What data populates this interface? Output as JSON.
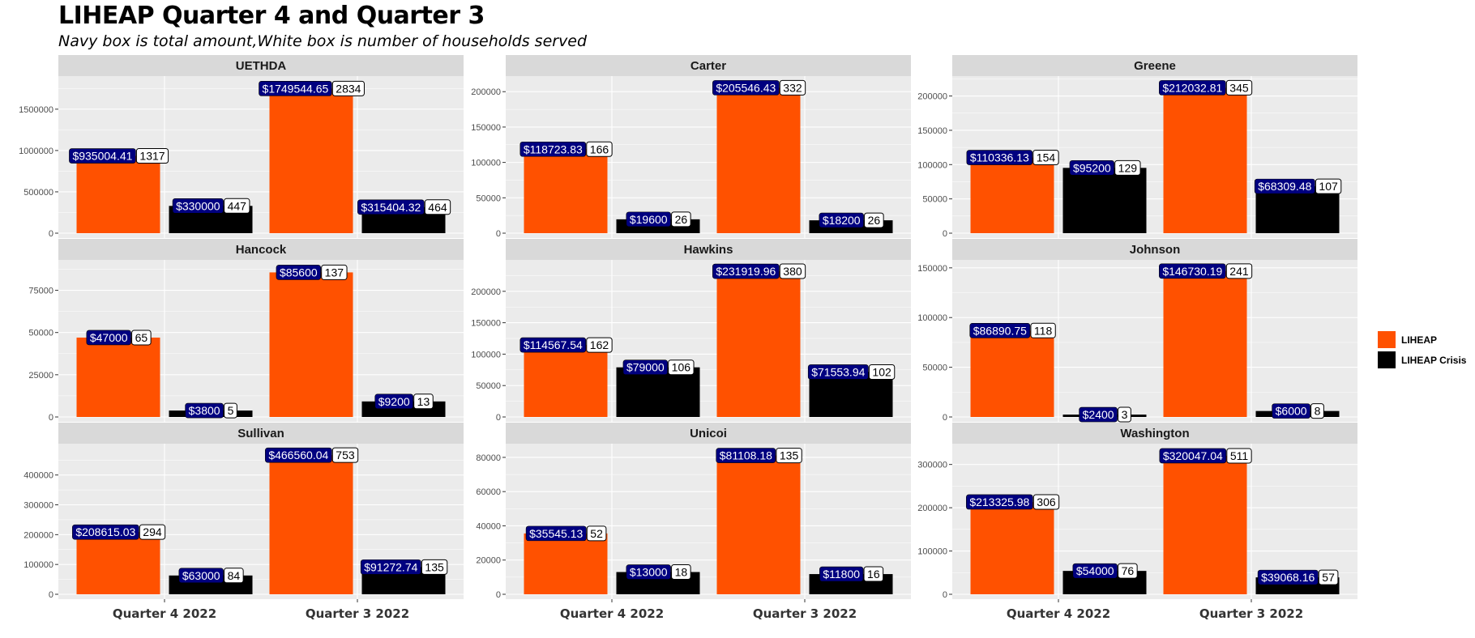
{
  "chart_data": {
    "type": "bar",
    "title": "LIHEAP Quarter 4 and Quarter 3",
    "subtitle": "Navy box is total amount,White box is number of households served",
    "categories": [
      "Quarter 4 2022",
      "Quarter 3 2022"
    ],
    "legend": {
      "placement": "right",
      "entries": [
        {
          "name": "LIHEAP",
          "color": "#FF5100"
        },
        {
          "name": "LIHEAP Crisis",
          "color": "#000000"
        }
      ]
    },
    "colors": {
      "panel_bg": "#EBEBEB",
      "strip_bg": "#D9D9D9",
      "grid": "#FFFFFF",
      "amount_box": "#000080",
      "households_box": "#FFFFFF"
    },
    "grid": true,
    "panels": [
      {
        "name": "UETHDA",
        "ylim": [
          0,
          1900000
        ],
        "ticks": [
          0,
          500000,
          1000000,
          1500000
        ],
        "tick_labels": [
          "0",
          "500000",
          "1000000",
          "1500000"
        ],
        "bars": [
          {
            "category": "Quarter 4 2022",
            "series": "LIHEAP",
            "value": 935004.41,
            "amount_label": "$935004.41",
            "households": "1317"
          },
          {
            "category": "Quarter 4 2022",
            "series": "LIHEAP Crisis",
            "value": 330000,
            "amount_label": "$330000",
            "households": "447"
          },
          {
            "category": "Quarter 3 2022",
            "series": "LIHEAP",
            "value": 1749544.65,
            "amount_label": "$1749544.65",
            "households": "2834"
          },
          {
            "category": "Quarter 3 2022",
            "series": "LIHEAP Crisis",
            "value": 315404.32,
            "amount_label": "$315404.32",
            "households": "464"
          }
        ]
      },
      {
        "name": "Carter",
        "ylim": [
          0,
          222000
        ],
        "ticks": [
          0,
          50000,
          100000,
          150000,
          200000
        ],
        "tick_labels": [
          "0",
          "50000",
          "100000",
          "150000",
          "200000"
        ],
        "bars": [
          {
            "category": "Quarter 4 2022",
            "series": "LIHEAP",
            "value": 118723.83,
            "amount_label": "$118723.83",
            "households": "166"
          },
          {
            "category": "Quarter 4 2022",
            "series": "LIHEAP Crisis",
            "value": 19600,
            "amount_label": "$19600",
            "households": "26"
          },
          {
            "category": "Quarter 3 2022",
            "series": "LIHEAP",
            "value": 205546.43,
            "amount_label": "$205546.43",
            "households": "332"
          },
          {
            "category": "Quarter 3 2022",
            "series": "LIHEAP Crisis",
            "value": 18200,
            "amount_label": "$18200",
            "households": "26"
          }
        ]
      },
      {
        "name": "Greene",
        "ylim": [
          0,
          229000
        ],
        "ticks": [
          0,
          50000,
          100000,
          150000,
          200000
        ],
        "tick_labels": [
          "0",
          "50000",
          "100000",
          "150000",
          "200000"
        ],
        "bars": [
          {
            "category": "Quarter 4 2022",
            "series": "LIHEAP",
            "value": 110336.13,
            "amount_label": "$110336.13",
            "households": "154"
          },
          {
            "category": "Quarter 4 2022",
            "series": "LIHEAP Crisis",
            "value": 95200,
            "amount_label": "$95200",
            "households": "129"
          },
          {
            "category": "Quarter 3 2022",
            "series": "LIHEAP",
            "value": 212032.81,
            "amount_label": "$212032.81",
            "households": "345"
          },
          {
            "category": "Quarter 3 2022",
            "series": "LIHEAP Crisis",
            "value": 68309.48,
            "amount_label": "$68309.48",
            "households": "107"
          }
        ]
      },
      {
        "name": "Hancock",
        "ylim": [
          0,
          93000
        ],
        "ticks": [
          0,
          25000,
          50000,
          75000
        ],
        "tick_labels": [
          "0",
          "25000",
          "50000",
          "75000"
        ],
        "bars": [
          {
            "category": "Quarter 4 2022",
            "series": "LIHEAP",
            "value": 47000,
            "amount_label": "$47000",
            "households": "65"
          },
          {
            "category": "Quarter 4 2022",
            "series": "LIHEAP Crisis",
            "value": 3800,
            "amount_label": "$3800",
            "households": "5"
          },
          {
            "category": "Quarter 3 2022",
            "series": "LIHEAP",
            "value": 85600,
            "amount_label": "$85600",
            "households": "137"
          },
          {
            "category": "Quarter 3 2022",
            "series": "LIHEAP Crisis",
            "value": 9200,
            "amount_label": "$9200",
            "households": "13"
          }
        ]
      },
      {
        "name": "Hawkins",
        "ylim": [
          0,
          250000
        ],
        "ticks": [
          0,
          50000,
          100000,
          150000,
          200000
        ],
        "tick_labels": [
          "0",
          "50000",
          "100000",
          "150000",
          "200000"
        ],
        "bars": [
          {
            "category": "Quarter 4 2022",
            "series": "LIHEAP",
            "value": 114567.54,
            "amount_label": "$114567.54",
            "households": "162"
          },
          {
            "category": "Quarter 4 2022",
            "series": "LIHEAP Crisis",
            "value": 79000,
            "amount_label": "$79000",
            "households": "106"
          },
          {
            "category": "Quarter 3 2022",
            "series": "LIHEAP",
            "value": 231919.96,
            "amount_label": "$231919.96",
            "households": "380"
          },
          {
            "category": "Quarter 3 2022",
            "series": "LIHEAP Crisis",
            "value": 71553.94,
            "amount_label": "$71553.94",
            "households": "102"
          }
        ]
      },
      {
        "name": "Johnson",
        "ylim": [
          0,
          158000
        ],
        "ticks": [
          0,
          50000,
          100000,
          150000
        ],
        "tick_labels": [
          "0",
          "50000",
          "100000",
          "150000"
        ],
        "bars": [
          {
            "category": "Quarter 4 2022",
            "series": "LIHEAP",
            "value": 86890.75,
            "amount_label": "$86890.75",
            "households": "118"
          },
          {
            "category": "Quarter 4 2022",
            "series": "LIHEAP Crisis",
            "value": 2400,
            "amount_label": "$2400",
            "households": "3"
          },
          {
            "category": "Quarter 3 2022",
            "series": "LIHEAP",
            "value": 146730.19,
            "amount_label": "$146730.19",
            "households": "241"
          },
          {
            "category": "Quarter 3 2022",
            "series": "LIHEAP Crisis",
            "value": 6000,
            "amount_label": "$6000",
            "households": "8"
          }
        ]
      },
      {
        "name": "Sullivan",
        "ylim": [
          0,
          505000
        ],
        "ticks": [
          0,
          100000,
          200000,
          300000,
          400000
        ],
        "tick_labels": [
          "0",
          "100000",
          "200000",
          "300000",
          "400000"
        ],
        "bars": [
          {
            "category": "Quarter 4 2022",
            "series": "LIHEAP",
            "value": 208615.03,
            "amount_label": "$208615.03",
            "households": "294"
          },
          {
            "category": "Quarter 4 2022",
            "series": "LIHEAP Crisis",
            "value": 63000,
            "amount_label": "$63000",
            "households": "84"
          },
          {
            "category": "Quarter 3 2022",
            "series": "LIHEAP",
            "value": 466560.04,
            "amount_label": "$466560.04",
            "households": "753"
          },
          {
            "category": "Quarter 3 2022",
            "series": "LIHEAP Crisis",
            "value": 91272.74,
            "amount_label": "$91272.74",
            "households": "135"
          }
        ]
      },
      {
        "name": "Unicoi",
        "ylim": [
          0,
          88000
        ],
        "ticks": [
          0,
          20000,
          40000,
          60000,
          80000
        ],
        "tick_labels": [
          "0",
          "20000",
          "40000",
          "60000",
          "80000"
        ],
        "bars": [
          {
            "category": "Quarter 4 2022",
            "series": "LIHEAP",
            "value": 35545.13,
            "amount_label": "$35545.13",
            "households": "52"
          },
          {
            "category": "Quarter 4 2022",
            "series": "LIHEAP Crisis",
            "value": 13000,
            "amount_label": "$13000",
            "households": "18"
          },
          {
            "category": "Quarter 3 2022",
            "series": "LIHEAP",
            "value": 81108.18,
            "amount_label": "$81108.18",
            "households": "135"
          },
          {
            "category": "Quarter 3 2022",
            "series": "LIHEAP Crisis",
            "value": 11800,
            "amount_label": "$11800",
            "households": "16"
          }
        ]
      },
      {
        "name": "Washington",
        "ylim": [
          0,
          348000
        ],
        "ticks": [
          0,
          100000,
          200000,
          300000
        ],
        "tick_labels": [
          "0",
          "100000",
          "200000",
          "300000"
        ],
        "bars": [
          {
            "category": "Quarter 4 2022",
            "series": "LIHEAP",
            "value": 213325.98,
            "amount_label": "$213325.98",
            "households": "306"
          },
          {
            "category": "Quarter 4 2022",
            "series": "LIHEAP Crisis",
            "value": 54000,
            "amount_label": "$54000",
            "households": "76"
          },
          {
            "category": "Quarter 3 2022",
            "series": "LIHEAP",
            "value": 320047.04,
            "amount_label": "$320047.04",
            "households": "511"
          },
          {
            "category": "Quarter 3 2022",
            "series": "LIHEAP Crisis",
            "value": 39068.16,
            "amount_label": "$39068.16",
            "households": "57"
          }
        ]
      }
    ]
  }
}
